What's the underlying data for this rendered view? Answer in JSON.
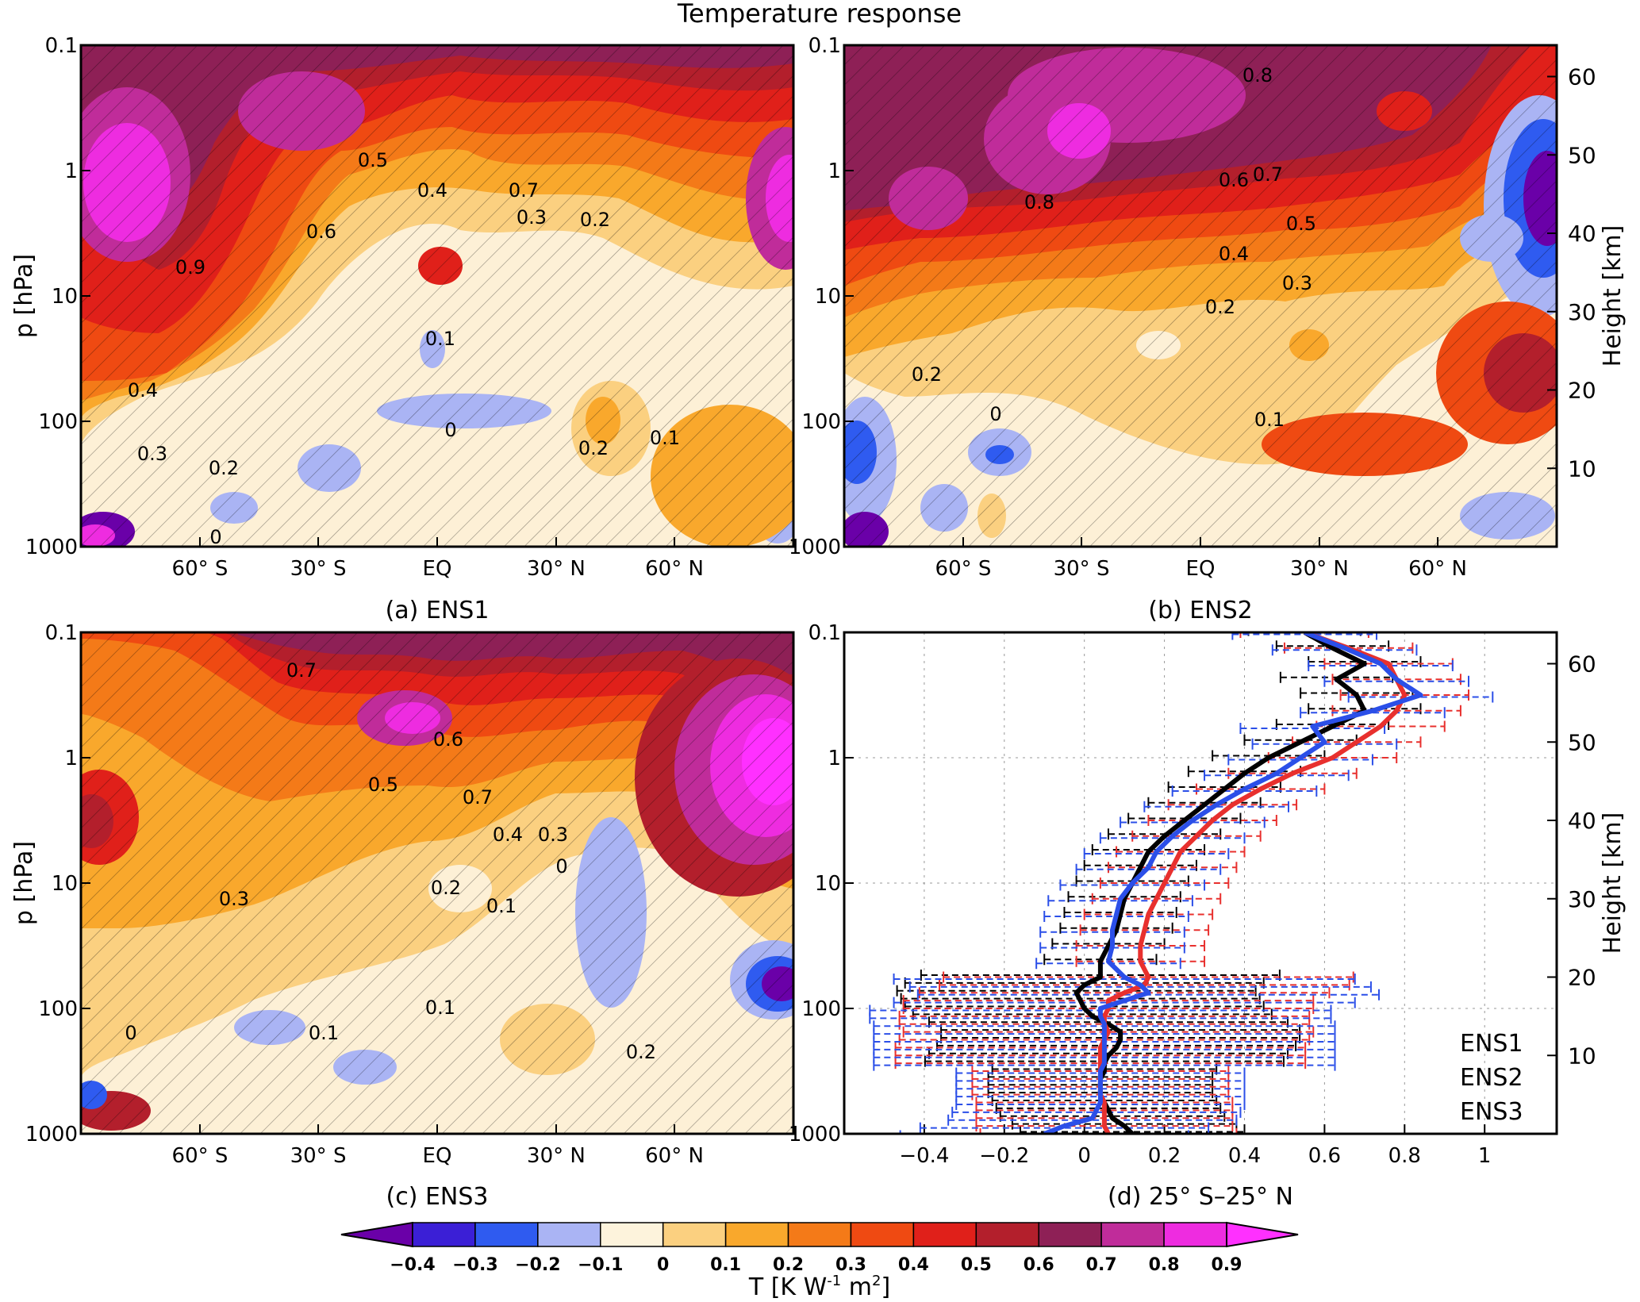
{
  "title": "Temperature response",
  "colorbar": {
    "ticks": [
      "-0.4",
      "-0.3",
      "-0.2",
      "-0.1",
      "0",
      "0.1",
      "0.2",
      "0.3",
      "0.4",
      "0.5",
      "0.6",
      "0.7",
      "0.8",
      "0.9"
    ],
    "label_main": "T [K W",
    "label_exp1": "-1",
    "label_mid": " m",
    "label_exp2": "2",
    "label_end": "]",
    "colors": [
      "#6a00a8",
      "#3b1fd6",
      "#2f5bf0",
      "#aab4f4",
      "#fdf3dc",
      "#fbd080",
      "#f9a82c",
      "#f47a18",
      "#ef4a12",
      "#e0201a",
      "#b31f2c",
      "#8e2056",
      "#c02c9a",
      "#ee2ce0",
      "#ff30ff"
    ]
  },
  "axes": {
    "p_label": "p [hPa]",
    "height_label": "Height [km]",
    "p_ticks": [
      "0.1",
      "1",
      "10",
      "100",
      "1000"
    ],
    "height_ticks": [
      "10",
      "20",
      "30",
      "40",
      "50",
      "60"
    ],
    "lat_ticks": [
      "60° S",
      "30° S",
      "EQ",
      "30° N",
      "60° N"
    ],
    "d_x_ticks": [
      "-0.4",
      "-0.2",
      "0",
      "0.2",
      "0.4",
      "0.6",
      "0.8",
      "1"
    ]
  },
  "panels": {
    "a": {
      "caption": "(a)  ENS1",
      "contour_labels": [
        "0.5",
        "0.4",
        "0.7",
        "0.6",
        "0.3",
        "0.2",
        "0.9",
        "0.1",
        "0.4",
        "0.3",
        "0.2",
        "0",
        "0.2",
        "0.1",
        "0"
      ]
    },
    "b": {
      "caption": "(b)  ENS2",
      "contour_labels": [
        "0.8",
        "0.8",
        "0.6",
        "0.7",
        "0.5",
        "0.4",
        "0.3",
        "0.2",
        "0.2",
        "0",
        "0.1"
      ]
    },
    "c": {
      "caption": "(c)  ENS3",
      "contour_labels": [
        "0.7",
        "0.6",
        "0.5",
        "0.7",
        "0.4",
        "0.3",
        "0",
        "0.2",
        "0.1",
        "0.3",
        "0.1",
        "0.2",
        "0",
        "0.1"
      ]
    },
    "d": {
      "caption": "(d)  25° S–25° N"
    }
  },
  "chart_data": {
    "type": "line",
    "title": "(d) 25° S–25° N",
    "xlabel": "",
    "ylabel": "p [hPa]",
    "y_right_label": "Height [km]",
    "xlim": [
      -0.6,
      1.18
    ],
    "ylim_height_km": [
      0,
      64
    ],
    "legend_position": "bottom-right",
    "series": [
      {
        "name": "ENS1",
        "color": "#000000",
        "height_km": [
          64,
          62,
          60,
          58,
          56,
          54,
          52,
          50,
          48,
          46,
          44,
          42,
          40,
          38,
          36,
          34,
          32,
          30,
          28,
          26,
          24,
          22,
          20,
          19,
          18,
          17,
          16,
          15,
          14,
          13,
          12,
          11,
          10,
          9,
          8,
          7,
          6,
          5,
          4,
          3,
          2,
          1,
          0
        ],
        "values": [
          0.55,
          0.62,
          0.7,
          0.63,
          0.68,
          0.7,
          0.62,
          0.54,
          0.46,
          0.4,
          0.35,
          0.3,
          0.25,
          0.2,
          0.16,
          0.14,
          0.12,
          0.1,
          0.09,
          0.08,
          0.06,
          0.04,
          0.04,
          0.0,
          -0.02,
          -0.01,
          0.0,
          0.02,
          0.06,
          0.09,
          0.09,
          0.08,
          0.06,
          0.05,
          0.05,
          0.04,
          0.04,
          0.04,
          0.05,
          0.06,
          0.07,
          0.1,
          0.12
        ],
        "err": 0.14
      },
      {
        "name": "ENS2",
        "color": "#e8302e",
        "height_km": [
          64,
          62,
          60,
          58,
          56,
          54,
          52,
          50,
          48,
          46,
          44,
          42,
          40,
          38,
          36,
          34,
          32,
          30,
          28,
          26,
          24,
          22,
          20,
          19,
          18,
          17,
          16,
          15,
          14,
          13,
          12,
          11,
          10,
          9,
          8,
          7,
          6,
          5,
          4,
          3,
          2,
          1,
          0
        ],
        "values": [
          0.55,
          0.66,
          0.76,
          0.78,
          0.8,
          0.78,
          0.74,
          0.68,
          0.62,
          0.52,
          0.44,
          0.37,
          0.32,
          0.28,
          0.24,
          0.22,
          0.2,
          0.18,
          0.16,
          0.15,
          0.14,
          0.14,
          0.16,
          0.15,
          0.1,
          0.06,
          0.06,
          0.05,
          0.05,
          0.06,
          0.05,
          0.04,
          0.04,
          0.04,
          0.04,
          0.04,
          0.04,
          0.04,
          0.05,
          0.05,
          0.05,
          0.05,
          0.06
        ],
        "err": 0.16
      },
      {
        "name": "ENS3",
        "color": "#2b4fe8",
        "height_km": [
          64,
          62,
          60,
          58,
          56,
          54,
          52,
          50,
          48,
          46,
          44,
          42,
          40,
          38,
          36,
          34,
          32,
          30,
          28,
          26,
          24,
          22,
          20,
          19,
          18,
          17,
          16,
          15,
          14,
          13,
          12,
          11,
          10,
          9,
          8,
          7,
          6,
          5,
          4,
          3,
          2,
          1,
          0
        ],
        "values": [
          0.55,
          0.65,
          0.74,
          0.78,
          0.84,
          0.72,
          0.57,
          0.6,
          0.54,
          0.48,
          0.4,
          0.33,
          0.27,
          0.22,
          0.18,
          0.16,
          0.12,
          0.09,
          0.08,
          0.07,
          0.07,
          0.06,
          0.1,
          0.14,
          0.16,
          0.1,
          0.04,
          0.04,
          0.05,
          0.05,
          0.05,
          0.05,
          0.05,
          0.05,
          0.04,
          0.04,
          0.04,
          0.04,
          0.04,
          0.03,
          0.02,
          -0.05,
          -0.1
        ],
        "err": 0.18
      }
    ],
    "legend": [
      "ENS1",
      "ENS2",
      "ENS3"
    ]
  }
}
